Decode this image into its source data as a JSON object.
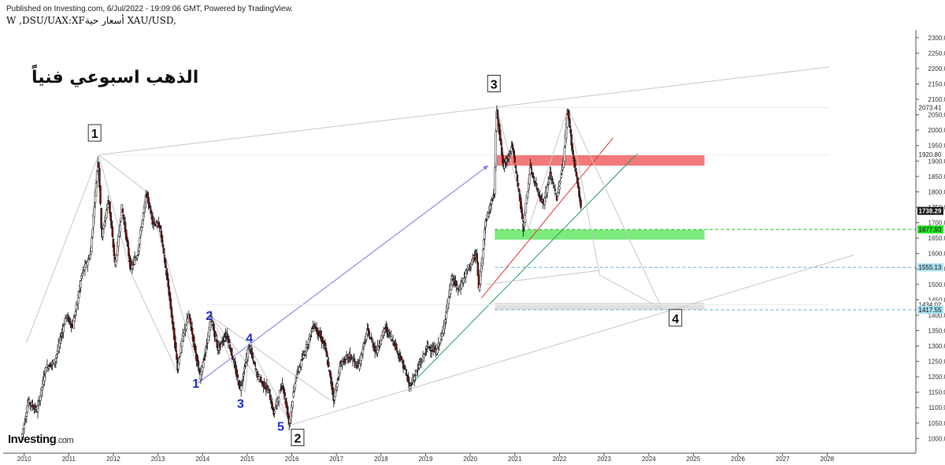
{
  "header": {
    "published_line": "Published on Investing.com, 6/Jul/2022 - 19:09:06 GMT, Powered by TradingView.",
    "symbol_line": "W ,DSU/UAX:XFأسعار حية XAU/USD,"
  },
  "title": "الذهب اسبوعي فنياً",
  "logo": {
    "brand": "Investing",
    "suffix": ".com"
  },
  "chart_data": {
    "type": "candlestick",
    "symbol": "XAU/USD",
    "timeframe": "W",
    "x_ticks": [
      "2010",
      "2011",
      "2012",
      "2013",
      "2014",
      "2015",
      "2016",
      "2017",
      "2018",
      "2019",
      "2020",
      "2021",
      "2022",
      "2023",
      "2024",
      "2025",
      "2026",
      "2027",
      "2028"
    ],
    "y_ticks": [
      1000,
      1050,
      1100,
      1150,
      1200,
      1250,
      1300,
      1350,
      1400,
      1450,
      1500,
      1550,
      1600,
      1650,
      1700,
      1750,
      1800,
      1850,
      1900,
      1950,
      2000,
      2050,
      2100,
      2150,
      2200,
      2250,
      2300
    ],
    "ylim": [
      960,
      2320
    ],
    "price_path": [
      [
        2009.95,
        1000
      ],
      [
        2010.1,
        1120
      ],
      [
        2010.3,
        1090
      ],
      [
        2010.5,
        1230
      ],
      [
        2010.7,
        1250
      ],
      [
        2010.95,
        1400
      ],
      [
        2011.1,
        1360
      ],
      [
        2011.3,
        1530
      ],
      [
        2011.5,
        1600
      ],
      [
        2011.67,
        1920
      ],
      [
        2011.75,
        1650
      ],
      [
        2011.9,
        1780
      ],
      [
        2012.05,
        1560
      ],
      [
        2012.2,
        1750
      ],
      [
        2012.4,
        1550
      ],
      [
        2012.55,
        1600
      ],
      [
        2012.75,
        1795
      ],
      [
        2012.9,
        1700
      ],
      [
        2013.05,
        1690
      ],
      [
        2013.25,
        1480
      ],
      [
        2013.45,
        1230
      ],
      [
        2013.55,
        1320
      ],
      [
        2013.7,
        1400
      ],
      [
        2013.95,
        1200
      ],
      [
        2014.1,
        1300
      ],
      [
        2014.2,
        1390
      ],
      [
        2014.35,
        1290
      ],
      [
        2014.55,
        1340
      ],
      [
        2014.75,
        1220
      ],
      [
        2014.85,
        1160
      ],
      [
        2015.05,
        1300
      ],
      [
        2015.25,
        1200
      ],
      [
        2015.5,
        1150
      ],
      [
        2015.6,
        1080
      ],
      [
        2015.8,
        1180
      ],
      [
        2015.95,
        1050
      ],
      [
        2016.1,
        1200
      ],
      [
        2016.3,
        1280
      ],
      [
        2016.5,
        1370
      ],
      [
        2016.75,
        1300
      ],
      [
        2016.95,
        1130
      ],
      [
        2017.1,
        1240
      ],
      [
        2017.3,
        1270
      ],
      [
        2017.5,
        1230
      ],
      [
        2017.7,
        1350
      ],
      [
        2017.9,
        1280
      ],
      [
        2018.1,
        1360
      ],
      [
        2018.3,
        1310
      ],
      [
        2018.5,
        1240
      ],
      [
        2018.65,
        1170
      ],
      [
        2018.85,
        1230
      ],
      [
        2019.05,
        1300
      ],
      [
        2019.25,
        1280
      ],
      [
        2019.4,
        1350
      ],
      [
        2019.6,
        1520
      ],
      [
        2019.75,
        1480
      ],
      [
        2019.95,
        1550
      ],
      [
        2020.15,
        1600
      ],
      [
        2020.2,
        1480
      ],
      [
        2020.35,
        1700
      ],
      [
        2020.55,
        1800
      ],
      [
        2020.6,
        2073
      ],
      [
        2020.75,
        1880
      ],
      [
        2020.95,
        1950
      ],
      [
        2021.1,
        1800
      ],
      [
        2021.2,
        1680
      ],
      [
        2021.35,
        1880
      ],
      [
        2021.5,
        1810
      ],
      [
        2021.65,
        1760
      ],
      [
        2021.8,
        1860
      ],
      [
        2021.95,
        1780
      ],
      [
        2022.1,
        1900
      ],
      [
        2022.19,
        2070
      ],
      [
        2022.3,
        1930
      ],
      [
        2022.4,
        1840
      ],
      [
        2022.5,
        1738
      ]
    ],
    "price_labels": [
      {
        "value": "2073.41",
        "price": 2073.41,
        "style": "plain"
      },
      {
        "value": "1920.80",
        "price": 1920.8,
        "style": "plain"
      },
      {
        "value": "1738.29",
        "price": 1738.29,
        "style": "current"
      },
      {
        "value": "1677.93",
        "price": 1677.93,
        "style": "green"
      },
      {
        "value": "1555.13",
        "price": 1555.13,
        "style": "blue"
      },
      {
        "value": "1434.02",
        "price": 1434.02,
        "style": "plain"
      },
      {
        "value": "1417.55",
        "price": 1417.55,
        "style": "blue"
      }
    ],
    "horizontal_lines": [
      {
        "price": 1677.93,
        "color": "#22bb22",
        "dashed": true
      },
      {
        "price": 1555.13,
        "color": "#5bb6d6",
        "dashed": true
      },
      {
        "price": 1417.55,
        "color": "#5bb6d6",
        "dashed": true
      }
    ],
    "zones": [
      {
        "x0": 2020.55,
        "x1": 2025.25,
        "y0": 1885,
        "y1": 1920,
        "color": "#f26b6b"
      },
      {
        "x0": 2020.55,
        "x1": 2025.25,
        "y0": 1645,
        "y1": 1677,
        "color": "#6ee86e"
      },
      {
        "x0": 2020.55,
        "x1": 2025.25,
        "y0": 1417,
        "y1": 1440,
        "color": "#dcdcdc"
      }
    ],
    "trendlines": [
      {
        "p0": [
          2011.67,
          1920
        ],
        "p1": [
          2028.05,
          2205
        ],
        "color": "#c8c8c8"
      },
      {
        "p0": [
          2016.0,
          1045
        ],
        "p1": [
          2028.6,
          1595
        ],
        "color": "#c8c8c8"
      },
      {
        "p0": [
          2013.9,
          1180
        ],
        "p1": [
          2020.4,
          1885
        ],
        "color": "#7b7bf0",
        "arrow": true
      },
      {
        "p0": [
          2020.25,
          1455
        ],
        "p1": [
          2023.2,
          1975
        ],
        "color": "#e03a3a"
      },
      {
        "p0": [
          2018.6,
          1165
        ],
        "p1": [
          2023.75,
          1925
        ],
        "color": "#2e9b5a"
      },
      {
        "p0": [
          2011.67,
          1920
        ],
        "p1": [
          2012.4,
          1535
        ],
        "color": "#c8c8c8"
      },
      {
        "p0": [
          2012.4,
          1535
        ],
        "p1": [
          2013.45,
          1210
        ],
        "color": "#c8c8c8"
      },
      {
        "p0": [
          2010.05,
          1310
        ],
        "p1": [
          2011.67,
          1920
        ],
        "color": "#c8c8c8"
      },
      {
        "p0": [
          2011.67,
          1920
        ],
        "p1": [
          2012.75,
          1800
        ],
        "color": "#c8c8c8"
      },
      {
        "p0": [
          2012.75,
          1800
        ],
        "p1": [
          2013.85,
          1250
        ],
        "color": "#c8c8c8"
      },
      {
        "p0": [
          2014.2,
          1395
        ],
        "p1": [
          2016.0,
          1050
        ],
        "color": "#c8c8c8"
      },
      {
        "p0": [
          2014.2,
          1395
        ],
        "p1": [
          2016.85,
          1125
        ],
        "color": "#c8c8c8"
      },
      {
        "p0": [
          2013.9,
          1180
        ],
        "p1": [
          2014.2,
          1395
        ],
        "color": "#c8c8c8"
      },
      {
        "p0": [
          2014.2,
          1395
        ],
        "p1": [
          2014.95,
          1150
        ],
        "color": "#c8c8c8"
      },
      {
        "p0": [
          2014.95,
          1150
        ],
        "p1": [
          2015.05,
          1300
        ],
        "color": "#c8c8c8"
      },
      {
        "p0": [
          2015.05,
          1300
        ],
        "p1": [
          2016.0,
          1050
        ],
        "color": "#c8c8c8"
      },
      {
        "p0": [
          2020.6,
          2073
        ],
        "p1": [
          2021.3,
          1680
        ],
        "color": "#c8c8c8"
      },
      {
        "p0": [
          2021.3,
          1680
        ],
        "p1": [
          2022.19,
          2070
        ],
        "color": "#c8c8c8"
      },
      {
        "p0": [
          2022.19,
          2070
        ],
        "p1": [
          2022.9,
          1530
        ],
        "color": "#c8c8c8"
      },
      {
        "p0": [
          2022.19,
          2070
        ],
        "p1": [
          2024.3,
          1420
        ],
        "color": "#c8c8c8"
      },
      {
        "p0": [
          2020.35,
          1500
        ],
        "p1": [
          2022.9,
          1545
        ],
        "color": "#c8c8c8"
      },
      {
        "p0": [
          2022.9,
          1530
        ],
        "p1": [
          2024.3,
          1420
        ],
        "color": "#c8c8c8"
      },
      {
        "p0": [
          2011.67,
          1920
        ],
        "p1": [
          2028.05,
          1920
        ],
        "color": "#ececec"
      },
      {
        "p0": [
          2020.6,
          2073.41
        ],
        "p1": [
          2028.05,
          2073.41
        ],
        "color": "#ececec"
      },
      {
        "p0": [
          2014.1,
          1434
        ],
        "p1": [
          2028.05,
          1434
        ],
        "color": "#ececec"
      }
    ],
    "wave_labels": [
      {
        "text": "1",
        "x": 2011.58,
        "price": 1990,
        "boxed": true
      },
      {
        "text": "3",
        "x": 2020.53,
        "price": 2150,
        "boxed": true
      },
      {
        "text": "2",
        "x": 2016.13,
        "price": 1002,
        "boxed": true
      },
      {
        "text": "4",
        "x": 2024.6,
        "price": 1390,
        "boxed": true
      },
      {
        "text": "1",
        "x": 2013.85,
        "price": 1180,
        "boxed": false
      },
      {
        "text": "2",
        "x": 2014.15,
        "price": 1400,
        "boxed": false
      },
      {
        "text": "3",
        "x": 2014.85,
        "price": 1115,
        "boxed": false
      },
      {
        "text": "4",
        "x": 2015.05,
        "price": 1327,
        "boxed": false
      },
      {
        "text": "5",
        "x": 2015.75,
        "price": 1040,
        "boxed": false
      }
    ],
    "grid": false
  },
  "colors": {
    "up_candle": "#ffffff",
    "down_candle": "#7a1a1a",
    "wick": "#111111",
    "axis": "#555555",
    "wave_blue": "#1f2fc4",
    "current_price_bg": "#111111",
    "green_label_bg": "#22dd22",
    "blue_label_bg": "#a6dff0"
  }
}
